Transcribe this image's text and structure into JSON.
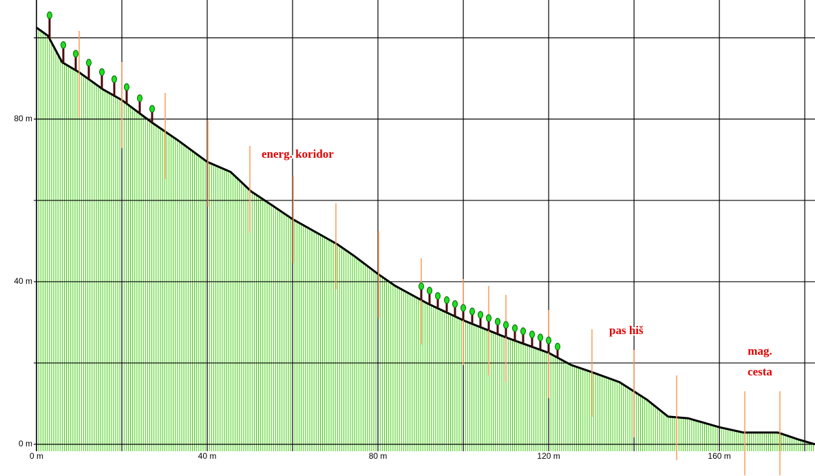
{
  "chart_data": {
    "type": "area",
    "x": [
      0,
      2.7,
      6,
      10,
      15.6,
      20,
      27,
      33.4,
      40,
      45.5,
      50.3,
      55.2,
      60,
      70.5,
      74.5,
      80,
      84,
      91.5,
      100,
      110,
      120,
      125.3,
      130,
      136.6,
      143,
      148,
      152.7,
      160,
      165.6,
      173.7,
      178.5,
      182.4
    ],
    "values": [
      102.5,
      100.5,
      94,
      91.5,
      87.3,
      84.7,
      79.2,
      74.6,
      69.5,
      67,
      62.2,
      58.8,
      55.4,
      49.2,
      46.3,
      41.9,
      39,
      34.7,
      30.5,
      26.3,
      22.5,
      19.5,
      17.8,
      15.3,
      11,
      6.8,
      6.4,
      4.2,
      2.9,
      2.9,
      1.2,
      0
    ],
    "color": "#33cc00",
    "line_color": "#000000",
    "xlim": [
      0,
      182.4
    ],
    "ylim": [
      -7.8,
      109.3
    ],
    "xticks": [
      {
        "value": 0,
        "label": "0 m"
      },
      {
        "value": 40,
        "label": "40 m"
      },
      {
        "value": 80,
        "label": "80 m"
      },
      {
        "value": 120,
        "label": "120 m"
      },
      {
        "value": 160,
        "label": "160 m"
      }
    ],
    "yticks": [
      {
        "value": 0,
        "label": "0 m"
      },
      {
        "value": 40,
        "label": "40 m"
      },
      {
        "value": 80,
        "label": "80 m"
      }
    ],
    "xgrid": [
      0,
      20,
      40,
      60,
      80,
      100,
      120,
      140,
      160,
      180
    ],
    "ygrid": [
      0,
      20,
      40,
      60,
      80,
      100
    ],
    "annotations": [
      "energ. koridor",
      "pas hiš",
      "mag.",
      "cesta"
    ]
  }
}
